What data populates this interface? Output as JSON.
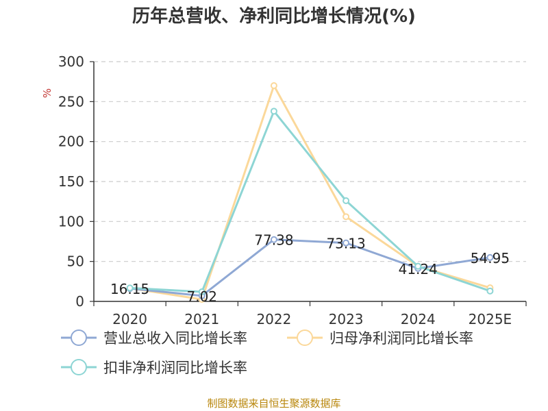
{
  "chart_data": {
    "type": "line",
    "title": "历年总营收、净利同比增长情况(%)",
    "ylabel": "%",
    "categories": [
      "2020",
      "2021",
      "2022",
      "2023",
      "2024",
      "2025E"
    ],
    "ylim": [
      0,
      300
    ],
    "yticks": [
      0,
      50,
      100,
      150,
      200,
      250,
      300
    ],
    "grid": true,
    "legend_position": "bottom",
    "series": [
      {
        "name": "营业总收入同比增长率",
        "color": "#8fa8d4",
        "values": [
          16.15,
          7.02,
          77.38,
          73.13,
          41.24,
          54.95
        ],
        "labels": [
          "16.15",
          "7.02",
          "77.38",
          "73.13",
          "41.24",
          "54.95"
        ]
      },
      {
        "name": "归母净利润同比增长率",
        "color": "#fbd89a",
        "values": [
          16.5,
          2.5,
          270,
          106,
          44,
          17
        ],
        "labels": []
      },
      {
        "name": "扣非净利润同比增长率",
        "color": "#8dd5d4",
        "values": [
          16.8,
          12,
          238,
          126,
          44,
          13
        ],
        "labels": []
      }
    ],
    "source": "制图数据来自恒生聚源数据库"
  }
}
